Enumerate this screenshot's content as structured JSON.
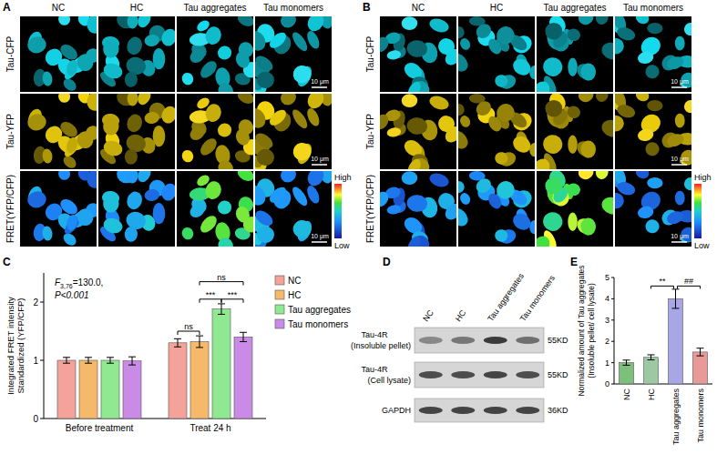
{
  "panel_labels": [
    "A",
    "B",
    "C",
    "D",
    "E"
  ],
  "microscopy": {
    "columns": [
      "NC",
      "HC",
      "Tau aggregates",
      "Tau monomers"
    ],
    "rows": [
      "Tau-CFP",
      "Tau-YFP",
      "FRET(YFP/CFP)"
    ],
    "scale_bar": "10 μm",
    "colorbar_high": "High",
    "colorbar_low": "Low"
  },
  "western_blot": {
    "lanes": [
      "NC",
      "HC",
      "Tau aggregates",
      "Tau monomers"
    ],
    "rows": [
      {
        "name": "Tau-4R",
        "detail": "(Insoluble pellet)",
        "size": "55KD"
      },
      {
        "name": "Tau-4R",
        "detail": "(Cell lysate)",
        "size": "55KD"
      },
      {
        "name": "GAPDH",
        "size": "36KD"
      }
    ]
  },
  "chart_data": [
    {
      "type": "bar",
      "y_label": [
        "Integrated FRET intensity",
        "Standardized (YFP/CFP)"
      ],
      "categories": [
        "Before treatment",
        "Treat 24 h"
      ],
      "series": [
        {
          "name": "NC",
          "color": "#f4a29a",
          "values": [
            1.0,
            1.3
          ],
          "errors": [
            0.05,
            0.07
          ]
        },
        {
          "name": "HC",
          "color": "#f6b96b",
          "values": [
            1.0,
            1.32
          ],
          "errors": [
            0.05,
            0.1
          ]
        },
        {
          "name": "Tau aggregates",
          "color": "#90e890",
          "values": [
            1.0,
            1.88
          ],
          "errors": [
            0.05,
            0.09
          ]
        },
        {
          "name": "Tau monomers",
          "color": "#c98be6",
          "values": [
            0.99,
            1.4
          ],
          "errors": [
            0.07,
            0.08
          ]
        }
      ],
      "ylim": [
        0,
        2.5
      ],
      "yticks": [
        0,
        1,
        2
      ],
      "legend": "right",
      "statistic": {
        "symbol": "F",
        "subscript": "3,76",
        "rest": "=130.0,",
        "p": "P<0.001"
      },
      "significance": [
        {
          "group": "Treat 24 h",
          "between": [
            "NC",
            "HC"
          ],
          "label": "ns"
        },
        {
          "group": "Treat 24 h",
          "between": [
            "HC",
            "Tau aggregates"
          ],
          "label": "***"
        },
        {
          "group": "Treat 24 h",
          "between": [
            "Tau aggregates",
            "Tau monomers"
          ],
          "label": "***"
        },
        {
          "group": "Treat 24 h",
          "between": [
            "HC",
            "Tau monomers"
          ],
          "label": "ns"
        }
      ]
    },
    {
      "type": "bar",
      "y_label": [
        "Normalized amount of Tau aggregates",
        "(Insoluble pellet/ cell lysate)"
      ],
      "categories": [
        "NC",
        "HC",
        "Tau aggregates",
        "Tau monomers"
      ],
      "values": [
        1.0,
        1.25,
        4.0,
        1.5
      ],
      "errors": [
        0.12,
        0.12,
        0.45,
        0.18
      ],
      "colors": [
        "#7dbf7b",
        "#9cc9a2",
        "#a9a6e8",
        "#e89a9a"
      ],
      "ylim": [
        0,
        5
      ],
      "yticks": [
        0,
        1,
        2,
        3,
        4,
        5
      ],
      "significance": [
        {
          "between": [
            "HC",
            "Tau aggregates"
          ],
          "label": "**"
        },
        {
          "between": [
            "Tau aggregates",
            "Tau monomers"
          ],
          "label": "##"
        }
      ]
    }
  ]
}
